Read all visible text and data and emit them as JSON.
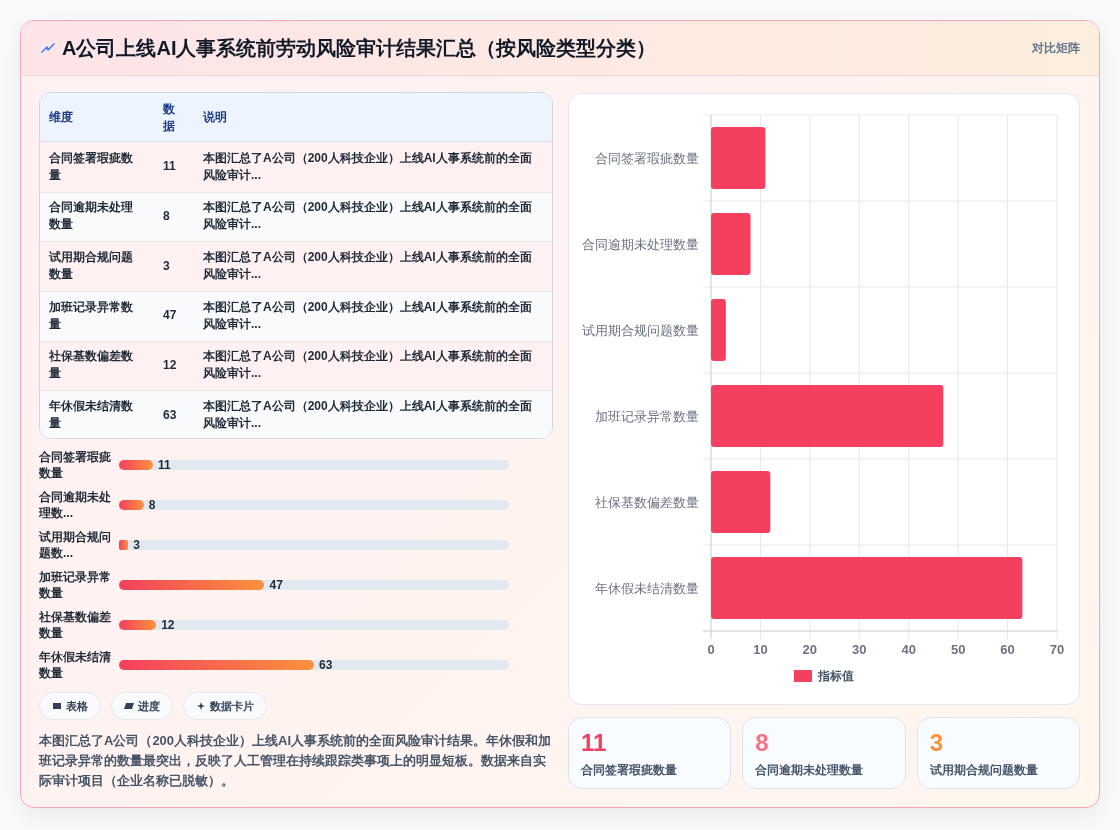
{
  "chart_data": [
    {
      "type": "other",
      "title": "A公司上线AI人事系统前劳动风险审计结果汇总（按风险类型分类）",
      "subtitle": "对比矩阵",
      "categories": [
        "合同签署瑕疵数量",
        "合同逾期未处理数量",
        "试用期合规问题数量",
        "加班记录异常数量",
        "社保基数偏差数量",
        "年休假未结清数量"
      ],
      "values": [
        11,
        8,
        3,
        47,
        12,
        63
      ],
      "data_labels": true,
      "annotations": [
        "维度",
        "数据",
        "说明",
        "本图汇总了A公司（200人科技企业）上线AI人事系统前的全面风险审计...",
        "本图汇总了A公司（200人科技企业）上线AI人事系统前的全面风险审计...",
        "本图汇总了A公司（200人科技企业）上线AI人事系统前的全面风险审计...",
        "本图汇总了A公司（200人科技企业）上线AI人事系统前的全面风险审计...",
        "本图汇总了A公司（200人科技企业）上线AI人事系统前的全面风险审计...",
        "本图汇总了A公司（200人科技企业）上线AI人事系统前的全面风险审计..."
      ]
    },
    {
      "type": "bar",
      "orientation": "horizontal",
      "categories": [
        "合同签署瑕疵数量",
        "合同逾期未处理数...",
        "试用期合规问题数...",
        "加班记录异常数量",
        "社保基数偏差数量",
        "年休假未结清数量"
      ],
      "values": [
        11,
        8,
        3,
        47,
        12,
        63
      ],
      "data_labels": true,
      "color": "#f43f5e",
      "tick_labels": "y",
      "annotations": [
        "表格",
        "进度",
        "数据卡片",
        "本图汇总了A公司（200人科技企业）上线AI人事系统前的全面风险审计结果。年休假和加班记录异常的数量最突出，反映了人工管理在持续跟踪类事项上的明显短板。数据来自实际审计项目（企业名称已脱敏）。"
      ]
    },
    {
      "type": "bar",
      "orientation": "horizontal",
      "categories": [
        "合同签署瑕疵数量",
        "合同逾期未处理数量",
        "试用期合规问题数量",
        "加班记录异常数量",
        "社保基数偏差数量",
        "年休假未结清数量"
      ],
      "series": [
        {
          "name": "指标值",
          "color": "#f43f5e",
          "values": [
            11,
            8,
            3,
            47,
            12,
            63
          ]
        }
      ],
      "xlim": [
        0,
        70
      ],
      "xticks": [
        0,
        10,
        20,
        30,
        40,
        50,
        60,
        70
      ],
      "grid": true,
      "legend": "bottom"
    },
    {
      "type": "other",
      "categories": [
        "合同签署瑕疵数量",
        "合同逾期未处理数量",
        "试用期合规问题数量"
      ],
      "values": [
        11,
        8,
        3
      ],
      "data_labels": true
    }
  ]
}
